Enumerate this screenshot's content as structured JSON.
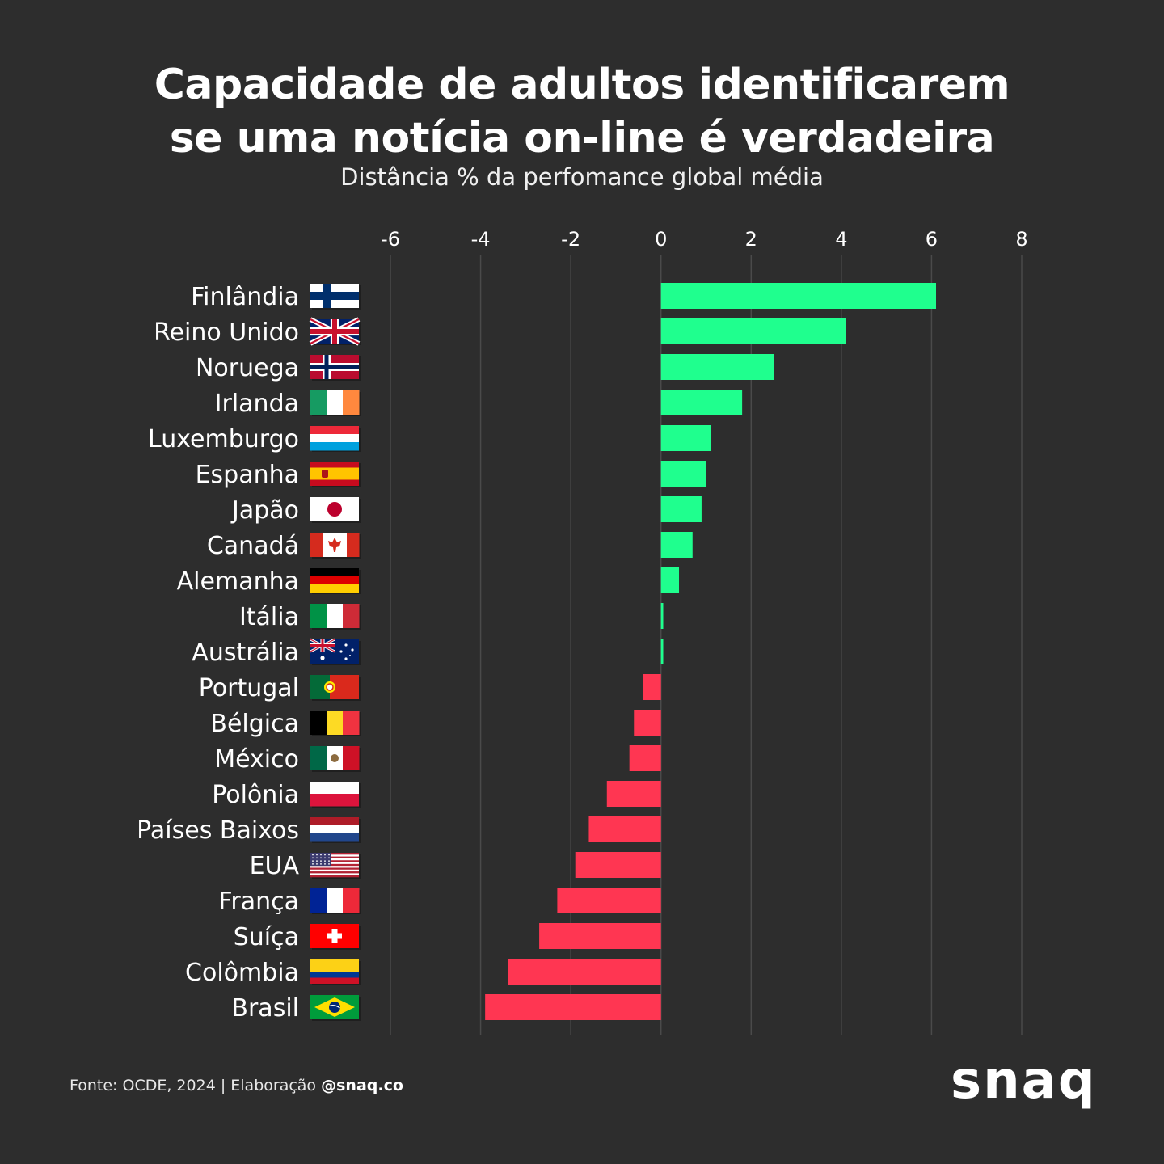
{
  "chart_data": {
    "type": "bar",
    "orientation": "horizontal",
    "title_line1": "Capacidade de adultos identificarem",
    "title_line2": "se uma notícia on-line é verdadeira",
    "subtitle": "Distância % da perfomance global média",
    "xlim": [
      -6,
      8
    ],
    "xticks": [
      "-6",
      "-4",
      "-2",
      "0",
      "2",
      "4",
      "6",
      "8"
    ],
    "grid": true,
    "positive_color": "#1fff8e",
    "negative_color": "#ff3652",
    "categories": [
      "Finlândia",
      "Reino Unido",
      "Noruega",
      "Irlanda",
      "Luxemburgo",
      "Espanha",
      "Japão",
      "Canadá",
      "Alemanha",
      "Itália",
      "Austrália",
      "Portugal",
      "Bélgica",
      "México",
      "Polônia",
      "Países Baixos",
      "EUA",
      "França",
      "Suíça",
      "Colômbia",
      "Brasil"
    ],
    "values": [
      6.1,
      4.1,
      2.5,
      1.8,
      1.1,
      1.0,
      0.9,
      0.7,
      0.4,
      0.05,
      0.05,
      -0.4,
      -0.6,
      -0.7,
      -1.2,
      -1.6,
      -1.9,
      -2.3,
      -2.7,
      -3.4,
      -3.9
    ]
  },
  "flags": [
    "finland-flag",
    "uk-flag",
    "norway-flag",
    "ireland-flag",
    "luxembourg-flag",
    "spain-flag",
    "japan-flag",
    "canada-flag",
    "germany-flag",
    "italy-flag",
    "australia-flag",
    "portugal-flag",
    "belgium-flag",
    "mexico-flag",
    "poland-flag",
    "netherlands-flag",
    "usa-flag",
    "france-flag",
    "switzerland-flag",
    "colombia-flag",
    "brazil-flag"
  ],
  "footer": {
    "source": "Fonte: OCDE, 2024 | Elaboração",
    "handle": "@snaq.co"
  },
  "logo": "snaq"
}
